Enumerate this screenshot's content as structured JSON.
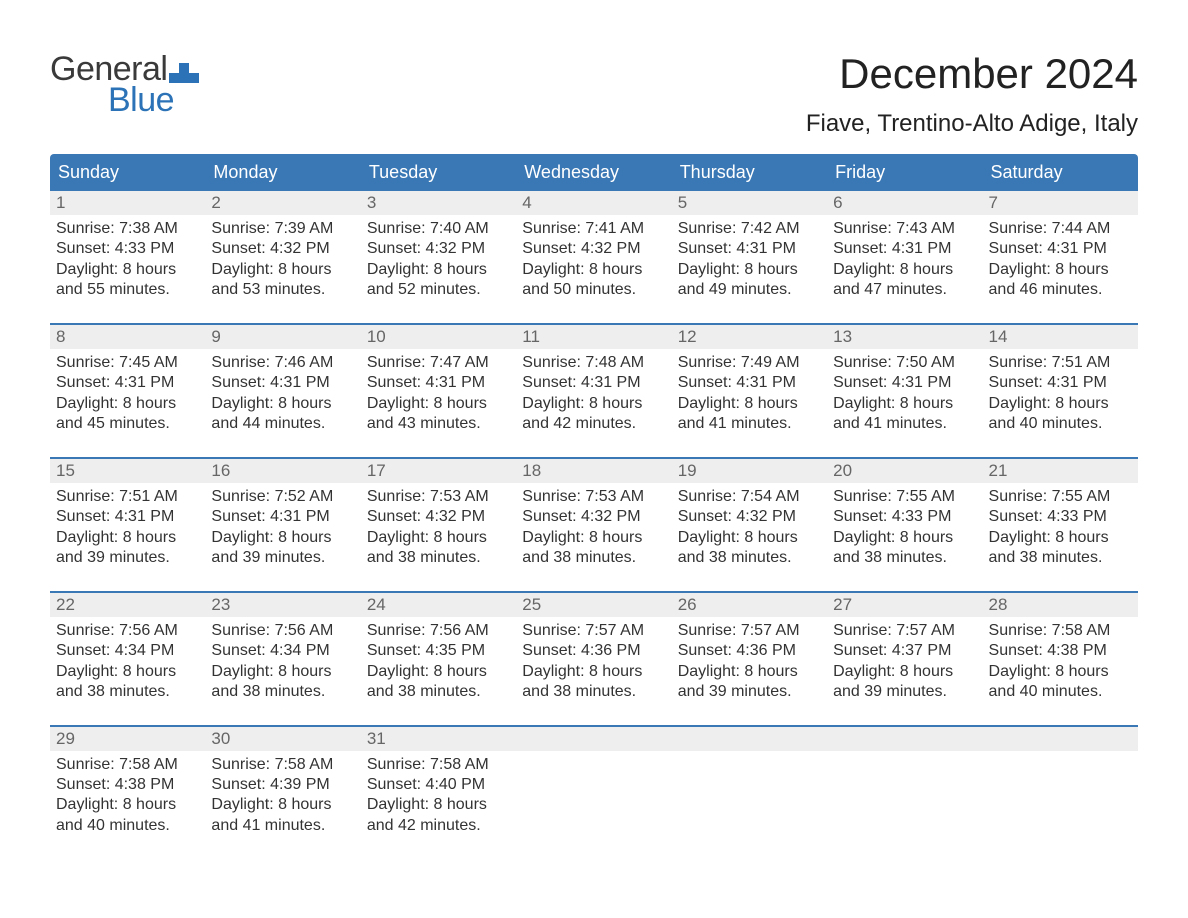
{
  "brand": {
    "top": "General",
    "bottom": "Blue",
    "flag_color": "#2b73b6"
  },
  "title": "December 2024",
  "location": "Fiave, Trentino-Alto Adige, Italy",
  "colors": {
    "header_bg": "#3a78b5",
    "header_text": "#ffffff",
    "daynum_bg": "#eeeeee",
    "daynum_text": "#666666",
    "body_text": "#333333",
    "rule": "#3a78b5"
  },
  "daysOfWeek": [
    "Sunday",
    "Monday",
    "Tuesday",
    "Wednesday",
    "Thursday",
    "Friday",
    "Saturday"
  ],
  "labels": {
    "sunrise": "Sunrise:",
    "sunset": "Sunset:",
    "daylight": "Daylight:"
  },
  "weeks": [
    [
      {
        "n": "1",
        "sunrise": "7:38 AM",
        "sunset": "4:33 PM",
        "daylight": "8 hours and 55 minutes."
      },
      {
        "n": "2",
        "sunrise": "7:39 AM",
        "sunset": "4:32 PM",
        "daylight": "8 hours and 53 minutes."
      },
      {
        "n": "3",
        "sunrise": "7:40 AM",
        "sunset": "4:32 PM",
        "daylight": "8 hours and 52 minutes."
      },
      {
        "n": "4",
        "sunrise": "7:41 AM",
        "sunset": "4:32 PM",
        "daylight": "8 hours and 50 minutes."
      },
      {
        "n": "5",
        "sunrise": "7:42 AM",
        "sunset": "4:31 PM",
        "daylight": "8 hours and 49 minutes."
      },
      {
        "n": "6",
        "sunrise": "7:43 AM",
        "sunset": "4:31 PM",
        "daylight": "8 hours and 47 minutes."
      },
      {
        "n": "7",
        "sunrise": "7:44 AM",
        "sunset": "4:31 PM",
        "daylight": "8 hours and 46 minutes."
      }
    ],
    [
      {
        "n": "8",
        "sunrise": "7:45 AM",
        "sunset": "4:31 PM",
        "daylight": "8 hours and 45 minutes."
      },
      {
        "n": "9",
        "sunrise": "7:46 AM",
        "sunset": "4:31 PM",
        "daylight": "8 hours and 44 minutes."
      },
      {
        "n": "10",
        "sunrise": "7:47 AM",
        "sunset": "4:31 PM",
        "daylight": "8 hours and 43 minutes."
      },
      {
        "n": "11",
        "sunrise": "7:48 AM",
        "sunset": "4:31 PM",
        "daylight": "8 hours and 42 minutes."
      },
      {
        "n": "12",
        "sunrise": "7:49 AM",
        "sunset": "4:31 PM",
        "daylight": "8 hours and 41 minutes."
      },
      {
        "n": "13",
        "sunrise": "7:50 AM",
        "sunset": "4:31 PM",
        "daylight": "8 hours and 41 minutes."
      },
      {
        "n": "14",
        "sunrise": "7:51 AM",
        "sunset": "4:31 PM",
        "daylight": "8 hours and 40 minutes."
      }
    ],
    [
      {
        "n": "15",
        "sunrise": "7:51 AM",
        "sunset": "4:31 PM",
        "daylight": "8 hours and 39 minutes."
      },
      {
        "n": "16",
        "sunrise": "7:52 AM",
        "sunset": "4:31 PM",
        "daylight": "8 hours and 39 minutes."
      },
      {
        "n": "17",
        "sunrise": "7:53 AM",
        "sunset": "4:32 PM",
        "daylight": "8 hours and 38 minutes."
      },
      {
        "n": "18",
        "sunrise": "7:53 AM",
        "sunset": "4:32 PM",
        "daylight": "8 hours and 38 minutes."
      },
      {
        "n": "19",
        "sunrise": "7:54 AM",
        "sunset": "4:32 PM",
        "daylight": "8 hours and 38 minutes."
      },
      {
        "n": "20",
        "sunrise": "7:55 AM",
        "sunset": "4:33 PM",
        "daylight": "8 hours and 38 minutes."
      },
      {
        "n": "21",
        "sunrise": "7:55 AM",
        "sunset": "4:33 PM",
        "daylight": "8 hours and 38 minutes."
      }
    ],
    [
      {
        "n": "22",
        "sunrise": "7:56 AM",
        "sunset": "4:34 PM",
        "daylight": "8 hours and 38 minutes."
      },
      {
        "n": "23",
        "sunrise": "7:56 AM",
        "sunset": "4:34 PM",
        "daylight": "8 hours and 38 minutes."
      },
      {
        "n": "24",
        "sunrise": "7:56 AM",
        "sunset": "4:35 PM",
        "daylight": "8 hours and 38 minutes."
      },
      {
        "n": "25",
        "sunrise": "7:57 AM",
        "sunset": "4:36 PM",
        "daylight": "8 hours and 38 minutes."
      },
      {
        "n": "26",
        "sunrise": "7:57 AM",
        "sunset": "4:36 PM",
        "daylight": "8 hours and 39 minutes."
      },
      {
        "n": "27",
        "sunrise": "7:57 AM",
        "sunset": "4:37 PM",
        "daylight": "8 hours and 39 minutes."
      },
      {
        "n": "28",
        "sunrise": "7:58 AM",
        "sunset": "4:38 PM",
        "daylight": "8 hours and 40 minutes."
      }
    ],
    [
      {
        "n": "29",
        "sunrise": "7:58 AM",
        "sunset": "4:38 PM",
        "daylight": "8 hours and 40 minutes."
      },
      {
        "n": "30",
        "sunrise": "7:58 AM",
        "sunset": "4:39 PM",
        "daylight": "8 hours and 41 minutes."
      },
      {
        "n": "31",
        "sunrise": "7:58 AM",
        "sunset": "4:40 PM",
        "daylight": "8 hours and 42 minutes."
      },
      null,
      null,
      null,
      null
    ]
  ]
}
